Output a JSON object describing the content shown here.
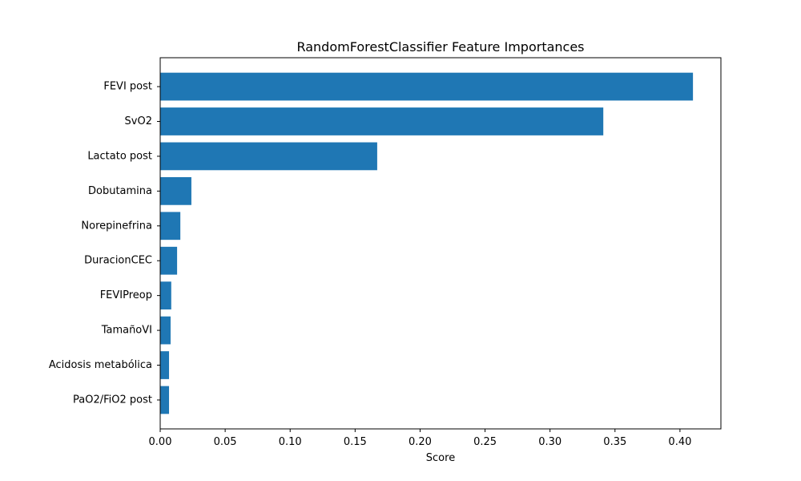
{
  "chart_data": {
    "type": "bar",
    "orientation": "horizontal",
    "title": "RandomForestClassifier Feature Importances",
    "xlabel": "Score",
    "ylabel": "",
    "categories": [
      "FEVI post",
      "SvO2",
      "Lactato post",
      "Dobutamina",
      "Norepinefrina",
      "DuracionCEC",
      "FEVIPreop",
      "TamañoVI",
      "Acidosis metabólica",
      "PaO2/FiO2 post"
    ],
    "values": [
      0.41,
      0.341,
      0.167,
      0.024,
      0.0155,
      0.013,
      0.0085,
      0.008,
      0.0068,
      0.0068
    ],
    "xlim": [
      0,
      0.4315
    ],
    "xticks": [
      "0.00",
      "0.05",
      "0.10",
      "0.15",
      "0.20",
      "0.25",
      "0.30",
      "0.35",
      "0.40"
    ],
    "bar_color": "#1f77b4",
    "grid": false,
    "legend": "none"
  }
}
